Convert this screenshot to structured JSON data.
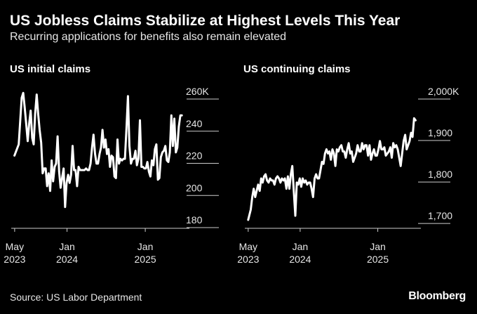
{
  "header": {
    "title": "US Jobless Claims Stabilize at Highest Levels This Year",
    "subtitle": "Recurring applications for benefits also remain elevated"
  },
  "footer": {
    "source": "Source: US Labor Department",
    "brand": "Bloomberg"
  },
  "colors": {
    "background": "#000000",
    "line": "#ffffff",
    "axis": "#cccccc"
  },
  "chart_data": [
    {
      "type": "line",
      "title": "US initial claims",
      "y_unit_suffix": "K",
      "ylim": [
        180,
        260
      ],
      "yticks": [
        {
          "value": 260,
          "label": "260K"
        },
        {
          "value": 240,
          "label": "240"
        },
        {
          "value": 220,
          "label": "220"
        },
        {
          "value": 200,
          "label": "200"
        },
        {
          "value": 180,
          "label": "180"
        }
      ],
      "xlim": [
        "2023-04-15",
        "2025-07-10"
      ],
      "xticks": [
        {
          "value": "2023-05-01",
          "label": [
            "May",
            "2023"
          ]
        },
        {
          "value": "2024-01-01",
          "label": [
            "Jan",
            "2024"
          ]
        },
        {
          "value": "2025-01-01",
          "label": [
            "Jan",
            "2025"
          ]
        }
      ],
      "grid": false,
      "series": [
        {
          "x": [
            "2023-04-30",
            "2023-05-20",
            "2023-06-03",
            "2023-06-10",
            "2023-06-17",
            "2023-06-24",
            "2023-07-01",
            "2023-07-08",
            "2023-07-15",
            "2023-07-22",
            "2023-07-29",
            "2023-08-05",
            "2023-08-12",
            "2023-08-19",
            "2023-08-26",
            "2023-09-02",
            "2023-09-09",
            "2023-09-16",
            "2023-09-23",
            "2023-09-30",
            "2023-10-07",
            "2023-10-14",
            "2023-10-21",
            "2023-10-28",
            "2023-11-04",
            "2023-11-11",
            "2023-11-18",
            "2023-11-25",
            "2023-12-02",
            "2023-12-09",
            "2023-12-16",
            "2023-12-23",
            "2023-12-30",
            "2024-01-06",
            "2024-01-13",
            "2024-01-20",
            "2024-01-27",
            "2024-02-03",
            "2024-02-10",
            "2024-02-17",
            "2024-02-24",
            "2024-03-02",
            "2024-03-09",
            "2024-03-16",
            "2024-03-23",
            "2024-03-30",
            "2024-04-06",
            "2024-04-13",
            "2024-04-20",
            "2024-04-27",
            "2024-05-04",
            "2024-05-11",
            "2024-05-18",
            "2024-05-25",
            "2024-06-01",
            "2024-06-08",
            "2024-06-15",
            "2024-06-22",
            "2024-06-29",
            "2024-07-06",
            "2024-07-13",
            "2024-07-20",
            "2024-07-27",
            "2024-08-03",
            "2024-08-10",
            "2024-08-17",
            "2024-08-24",
            "2024-08-31",
            "2024-09-07",
            "2024-09-14",
            "2024-09-21",
            "2024-09-28",
            "2024-10-05",
            "2024-10-12",
            "2024-10-19",
            "2024-10-26",
            "2024-11-02",
            "2024-11-09",
            "2024-11-16",
            "2024-11-23",
            "2024-11-30",
            "2024-12-07",
            "2024-12-14",
            "2024-12-21",
            "2024-12-28",
            "2025-01-04",
            "2025-01-11",
            "2025-01-18",
            "2025-01-25",
            "2025-02-01",
            "2025-02-08",
            "2025-02-15",
            "2025-02-22",
            "2025-03-01",
            "2025-03-08",
            "2025-03-15",
            "2025-03-22",
            "2025-03-29",
            "2025-04-05",
            "2025-04-12",
            "2025-04-19",
            "2025-04-26",
            "2025-05-03",
            "2025-05-10",
            "2025-05-17",
            "2025-05-24",
            "2025-05-31",
            "2025-06-07",
            "2025-06-14",
            "2025-06-21"
          ],
          "y": [
            220,
            227,
            256,
            259,
            250,
            240,
            229,
            240,
            248,
            231,
            227,
            246,
            258,
            246,
            236,
            228,
            209,
            212,
            212,
            201,
            209,
            198,
            217,
            204,
            213,
            215,
            232,
            210,
            200,
            206,
            212,
            188,
            203,
            208,
            203,
            208,
            226,
            211,
            211,
            201,
            213,
            211,
            211,
            211,
            211,
            212,
            211,
            211,
            215,
            225,
            233,
            221,
            215,
            215,
            221,
            225,
            236,
            225,
            230,
            221,
            224,
            213,
            220,
            219,
            207,
            206,
            230,
            215,
            218,
            217,
            218,
            218,
            237,
            257,
            226,
            215,
            218,
            218,
            223,
            214,
            218,
            242,
            213,
            213,
            212,
            212,
            216,
            210,
            207,
            217,
            214,
            224,
            227,
            205,
            206,
            219,
            222,
            223,
            226,
            217,
            216,
            222,
            245,
            226,
            243,
            222,
            225,
            238,
            245,
            245
          ]
        }
      ]
    },
    {
      "type": "line",
      "title": "US continuing claims",
      "ylim": [
        1690,
        2000
      ],
      "yticks": [
        {
          "value": 2000,
          "label": "2,000K"
        },
        {
          "value": 1900,
          "label": "1,900"
        },
        {
          "value": 1800,
          "label": "1,800"
        },
        {
          "value": 1700,
          "label": "1,700"
        }
      ],
      "xlim": [
        "2023-04-15",
        "2025-07-10"
      ],
      "xticks": [
        {
          "value": "2023-05-01",
          "label": [
            "May",
            "2023"
          ]
        },
        {
          "value": "2024-01-01",
          "label": [
            "Jan",
            "2024"
          ]
        },
        {
          "value": "2025-01-01",
          "label": [
            "Jan",
            "2025"
          ]
        }
      ],
      "grid": false,
      "series": [
        {
          "x": [
            "2023-05-01",
            "2023-05-13",
            "2023-05-20",
            "2023-05-27",
            "2023-06-03",
            "2023-06-10",
            "2023-06-17",
            "2023-06-24",
            "2023-07-01",
            "2023-07-08",
            "2023-07-15",
            "2023-07-22",
            "2023-07-29",
            "2023-08-05",
            "2023-08-12",
            "2023-08-19",
            "2023-08-26",
            "2023-09-02",
            "2023-09-09",
            "2023-09-16",
            "2023-09-23",
            "2023-09-30",
            "2023-10-07",
            "2023-10-14",
            "2023-10-21",
            "2023-10-28",
            "2023-11-04",
            "2023-11-11",
            "2023-11-18",
            "2023-11-25",
            "2023-12-02",
            "2023-12-09",
            "2023-12-16",
            "2023-12-23",
            "2023-12-30",
            "2024-01-06",
            "2024-01-13",
            "2024-01-20",
            "2024-01-27",
            "2024-02-03",
            "2024-02-10",
            "2024-02-17",
            "2024-02-24",
            "2024-03-02",
            "2024-03-09",
            "2024-03-16",
            "2024-03-23",
            "2024-03-30",
            "2024-04-06",
            "2024-04-13",
            "2024-04-20",
            "2024-04-27",
            "2024-05-04",
            "2024-05-11",
            "2024-05-18",
            "2024-05-25",
            "2024-06-01",
            "2024-06-08",
            "2024-06-15",
            "2024-06-22",
            "2024-06-29",
            "2024-07-06",
            "2024-07-13",
            "2024-07-20",
            "2024-07-27",
            "2024-08-03",
            "2024-08-10",
            "2024-08-17",
            "2024-08-24",
            "2024-08-31",
            "2024-09-07",
            "2024-09-14",
            "2024-09-21",
            "2024-09-28",
            "2024-10-05",
            "2024-10-12",
            "2024-10-19",
            "2024-10-26",
            "2024-11-02",
            "2024-11-09",
            "2024-11-16",
            "2024-11-23",
            "2024-11-30",
            "2024-12-07",
            "2024-12-14",
            "2024-12-21",
            "2024-12-28",
            "2025-01-04",
            "2025-01-11",
            "2025-01-18",
            "2025-01-25",
            "2025-02-01",
            "2025-02-08",
            "2025-02-15",
            "2025-02-22",
            "2025-03-01",
            "2025-03-08",
            "2025-03-15",
            "2025-03-22",
            "2025-03-29",
            "2025-04-05",
            "2025-04-12",
            "2025-04-19",
            "2025-04-26",
            "2025-05-03",
            "2025-05-10",
            "2025-05-17",
            "2025-05-24",
            "2025-05-31",
            "2025-06-07",
            "2025-06-14",
            "2025-06-21",
            "2025-06-28"
          ],
          "y": [
            1690,
            1715,
            1745,
            1765,
            1745,
            1760,
            1775,
            1760,
            1790,
            1780,
            1795,
            1800,
            1785,
            1780,
            1790,
            1785,
            1785,
            1775,
            1790,
            1795,
            1790,
            1780,
            1790,
            1785,
            1790,
            1765,
            1795,
            1765,
            1800,
            1820,
            1760,
            1700,
            1780,
            1775,
            1790,
            1770,
            1790,
            1780,
            1785,
            1775,
            1780,
            1780,
            1765,
            1745,
            1790,
            1800,
            1790,
            1790,
            1810,
            1830,
            1825,
            1850,
            1860,
            1850,
            1855,
            1835,
            1860,
            1850,
            1820,
            1860,
            1855,
            1865,
            1870,
            1855,
            1855,
            1840,
            1860,
            1875,
            1850,
            1855,
            1830,
            1840,
            1850,
            1870,
            1855,
            1855,
            1875,
            1860,
            1870,
            1870,
            1845,
            1870,
            1835,
            1850,
            1860,
            1845,
            1845,
            1860,
            1880,
            1860,
            1860,
            1865,
            1845,
            1850,
            1855,
            1865,
            1840,
            1875,
            1865,
            1870,
            1860,
            1840,
            1820,
            1850,
            1880,
            1895,
            1860,
            1870,
            1880,
            1900,
            1890,
            1935,
            1930
          ]
        }
      ]
    }
  ]
}
